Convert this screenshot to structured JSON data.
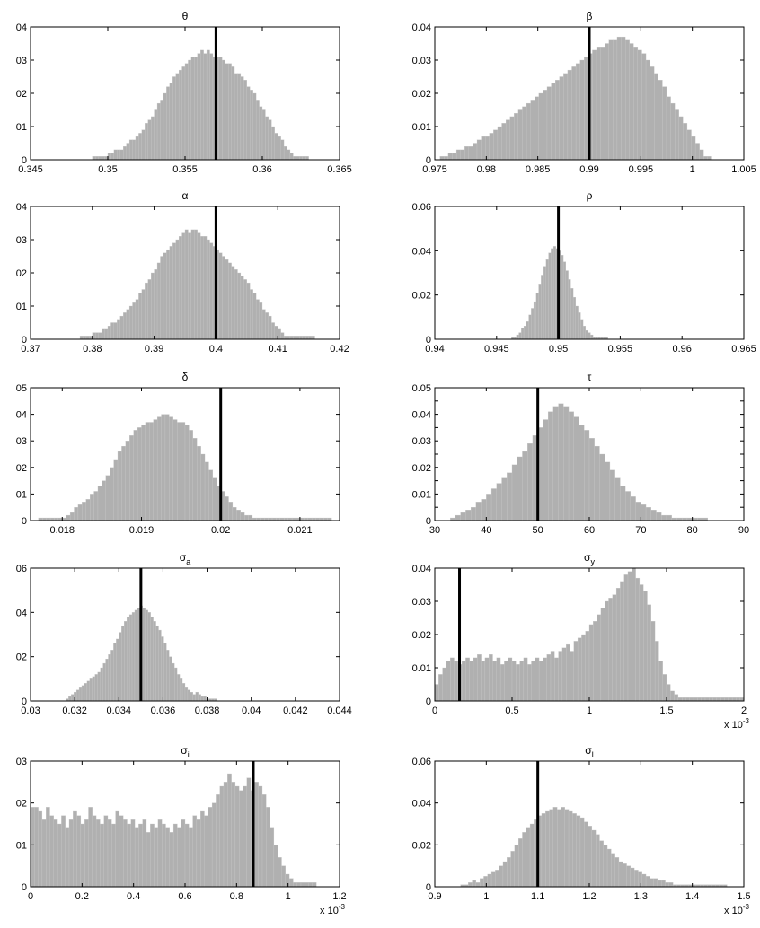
{
  "figure": {
    "colors": {
      "bar": "#b0b0b0",
      "marker": "#000000",
      "axis": "#000000"
    }
  },
  "chart_data": [
    {
      "type": "histogram",
      "title": "θ",
      "title_sub": "",
      "xlim": [
        0.345,
        0.365
      ],
      "ylim": [
        0,
        0.04
      ],
      "x_ticks": [
        0.345,
        0.35,
        0.355,
        0.36,
        0.365
      ],
      "x_tick_labels": [
        "0.345",
        "0.35",
        "0.355",
        "0.36",
        "0.365"
      ],
      "y_ticks": [
        0,
        0.01,
        0.02,
        0.03,
        0.04
      ],
      "y_tick_labels": [
        "0",
        "01",
        "02",
        "03",
        "04"
      ],
      "x_multiplier": "",
      "reference_line": 0.357,
      "bins": {
        "start": 0.349,
        "step": 0.0002,
        "values": [
          0.001,
          0.001,
          0.001,
          0.001,
          0.001,
          0.002,
          0.002,
          0.003,
          0.003,
          0.003,
          0.004,
          0.005,
          0.006,
          0.006,
          0.007,
          0.008,
          0.009,
          0.011,
          0.012,
          0.013,
          0.015,
          0.017,
          0.018,
          0.02,
          0.022,
          0.023,
          0.025,
          0.026,
          0.027,
          0.028,
          0.029,
          0.03,
          0.031,
          0.031,
          0.032,
          0.033,
          0.032,
          0.033,
          0.032,
          0.031,
          0.031,
          0.031,
          0.03,
          0.029,
          0.029,
          0.028,
          0.026,
          0.026,
          0.025,
          0.024,
          0.022,
          0.021,
          0.02,
          0.018,
          0.016,
          0.015,
          0.013,
          0.012,
          0.01,
          0.008,
          0.007,
          0.006,
          0.004,
          0.003,
          0.002,
          0.001,
          0.001,
          0.001,
          0.001,
          0.001
        ]
      }
    },
    {
      "type": "histogram",
      "title": "β",
      "title_sub": "",
      "xlim": [
        0.975,
        1.005
      ],
      "ylim": [
        0,
        0.04
      ],
      "x_ticks": [
        0.975,
        0.98,
        0.985,
        0.99,
        0.995,
        1,
        1.005
      ],
      "x_tick_labels": [
        "0.975",
        "0.98",
        "0.985",
        "0.99",
        "0.995",
        "1",
        "1.005"
      ],
      "y_ticks": [
        0,
        0.01,
        0.02,
        0.03,
        0.04
      ],
      "y_tick_labels": [
        "0",
        "0.01",
        "0.02",
        "0.03",
        "0.04"
      ],
      "x_multiplier": "",
      "reference_line": 0.99,
      "bins": {
        "start": 0.9755,
        "step": 0.0004,
        "values": [
          0.001,
          0.001,
          0.002,
          0.002,
          0.003,
          0.003,
          0.004,
          0.004,
          0.005,
          0.006,
          0.007,
          0.007,
          0.008,
          0.009,
          0.01,
          0.011,
          0.012,
          0.013,
          0.014,
          0.015,
          0.016,
          0.017,
          0.018,
          0.019,
          0.02,
          0.021,
          0.022,
          0.023,
          0.024,
          0.025,
          0.026,
          0.027,
          0.028,
          0.029,
          0.03,
          0.031,
          0.032,
          0.033,
          0.034,
          0.034,
          0.035,
          0.036,
          0.036,
          0.037,
          0.037,
          0.036,
          0.035,
          0.034,
          0.033,
          0.032,
          0.03,
          0.028,
          0.026,
          0.024,
          0.022,
          0.019,
          0.017,
          0.015,
          0.013,
          0.011,
          0.009,
          0.007,
          0.005,
          0.003,
          0.001,
          0.001
        ]
      }
    },
    {
      "type": "histogram",
      "title": "α",
      "title_sub": "",
      "xlim": [
        0.37,
        0.42
      ],
      "ylim": [
        0,
        0.04
      ],
      "x_ticks": [
        0.37,
        0.38,
        0.39,
        0.4,
        0.41,
        0.42
      ],
      "x_tick_labels": [
        "0.37",
        "0.38",
        "0.39",
        "0.4",
        "0.41",
        "0.42"
      ],
      "y_ticks": [
        0,
        0.01,
        0.02,
        0.03,
        0.04
      ],
      "y_tick_labels": [
        "0",
        "01",
        "02",
        "03",
        "04"
      ],
      "x_multiplier": "",
      "reference_line": 0.4,
      "bins": {
        "start": 0.378,
        "step": 0.0005,
        "values": [
          0.001,
          0.001,
          0.001,
          0.001,
          0.002,
          0.002,
          0.002,
          0.003,
          0.003,
          0.004,
          0.005,
          0.005,
          0.006,
          0.007,
          0.008,
          0.009,
          0.01,
          0.011,
          0.012,
          0.014,
          0.015,
          0.017,
          0.018,
          0.02,
          0.021,
          0.023,
          0.025,
          0.026,
          0.027,
          0.028,
          0.029,
          0.03,
          0.031,
          0.032,
          0.033,
          0.032,
          0.033,
          0.033,
          0.032,
          0.031,
          0.031,
          0.03,
          0.029,
          0.028,
          0.027,
          0.026,
          0.025,
          0.024,
          0.023,
          0.022,
          0.021,
          0.02,
          0.019,
          0.018,
          0.017,
          0.015,
          0.014,
          0.012,
          0.011,
          0.009,
          0.008,
          0.007,
          0.005,
          0.004,
          0.003,
          0.002,
          0.001,
          0.001,
          0.001,
          0.001,
          0.001,
          0.001,
          0.001,
          0.001,
          0.001,
          0.001
        ]
      }
    },
    {
      "type": "histogram",
      "title": "ρ",
      "title_sub": "",
      "xlim": [
        0.94,
        0.965
      ],
      "ylim": [
        0,
        0.06
      ],
      "x_ticks": [
        0.94,
        0.945,
        0.95,
        0.955,
        0.96,
        0.965
      ],
      "x_tick_labels": [
        "0.94",
        "0.945",
        "0.95",
        "0.955",
        "0.96",
        "0.965"
      ],
      "y_ticks": [
        0,
        0.02,
        0.04,
        0.06
      ],
      "y_tick_labels": [
        "0",
        "0.02",
        "0.04",
        "0.06"
      ],
      "x_multiplier": "",
      "reference_line": 0.95,
      "bins": {
        "start": 0.9462,
        "step": 0.0002,
        "values": [
          0.001,
          0.001,
          0.002,
          0.003,
          0.005,
          0.006,
          0.008,
          0.011,
          0.014,
          0.017,
          0.021,
          0.025,
          0.029,
          0.033,
          0.036,
          0.039,
          0.041,
          0.042,
          0.041,
          0.04,
          0.038,
          0.035,
          0.031,
          0.027,
          0.023,
          0.019,
          0.015,
          0.012,
          0.009,
          0.006,
          0.004,
          0.003,
          0.002,
          0.001,
          0.001,
          0.001,
          0.001,
          0.001,
          0.001
        ]
      }
    },
    {
      "type": "histogram",
      "title": "δ",
      "title_sub": "",
      "xlim": [
        0.0176,
        0.0215
      ],
      "ylim": [
        0,
        0.05
      ],
      "x_ticks": [
        0.018,
        0.019,
        0.02,
        0.021
      ],
      "x_tick_labels": [
        "0.018",
        "0.019",
        "0.02",
        "0.021"
      ],
      "y_ticks": [
        0,
        0.01,
        0.02,
        0.03,
        0.04,
        0.05
      ],
      "y_tick_labels": [
        "0",
        "01",
        "02",
        "03",
        "04",
        "05"
      ],
      "x_multiplier": "",
      "reference_line": 0.02,
      "bins": {
        "start": 0.0177,
        "step": 5e-05,
        "values": [
          0.001,
          0.001,
          0.001,
          0.001,
          0.001,
          0.001,
          0.001,
          0.002,
          0.003,
          0.005,
          0.006,
          0.007,
          0.008,
          0.01,
          0.011,
          0.013,
          0.015,
          0.017,
          0.02,
          0.023,
          0.026,
          0.028,
          0.03,
          0.032,
          0.034,
          0.035,
          0.036,
          0.037,
          0.037,
          0.038,
          0.039,
          0.04,
          0.04,
          0.039,
          0.038,
          0.037,
          0.037,
          0.036,
          0.034,
          0.031,
          0.028,
          0.025,
          0.022,
          0.019,
          0.016,
          0.013,
          0.011,
          0.009,
          0.007,
          0.005,
          0.004,
          0.003,
          0.002,
          0.002,
          0.001,
          0.001,
          0.001,
          0.001,
          0.001,
          0.001,
          0.001,
          0.001,
          0.001,
          0.001,
          0.001,
          0.001,
          0.001,
          0.001,
          0.001,
          0.001,
          0.001,
          0.001,
          0.001,
          0.001
        ]
      }
    },
    {
      "type": "histogram",
      "title": "τ",
      "title_sub": "",
      "xlim": [
        30,
        90
      ],
      "ylim": [
        0,
        0.05
      ],
      "x_ticks": [
        30,
        40,
        50,
        60,
        70,
        80,
        90
      ],
      "x_tick_labels": [
        "30",
        "40",
        "50",
        "60",
        "70",
        "80",
        "90"
      ],
      "y_ticks": [
        0,
        0.005,
        0.01,
        0.015,
        0.02,
        0.025,
        0.03,
        0.035,
        0.04,
        0.045,
        0.05
      ],
      "y_tick_labels": [
        "0",
        "0.005",
        "0.01",
        "0.015",
        "0.02",
        "0.025",
        "0.03",
        "0.035",
        "0.04",
        "0.045",
        "0.05"
      ],
      "x_multiplier": "",
      "reference_line": 50,
      "bins": {
        "start": 33,
        "step": 1,
        "values": [
          0.001,
          0.002,
          0.003,
          0.004,
          0.005,
          0.007,
          0.008,
          0.01,
          0.012,
          0.014,
          0.016,
          0.018,
          0.021,
          0.024,
          0.026,
          0.029,
          0.032,
          0.035,
          0.038,
          0.041,
          0.043,
          0.044,
          0.043,
          0.041,
          0.039,
          0.036,
          0.034,
          0.031,
          0.028,
          0.025,
          0.022,
          0.019,
          0.016,
          0.013,
          0.011,
          0.009,
          0.007,
          0.006,
          0.005,
          0.004,
          0.003,
          0.002,
          0.002,
          0.001,
          0.001,
          0.001,
          0.001,
          0.001,
          0.001,
          0.001
        ]
      }
    },
    {
      "type": "histogram",
      "title": "σ",
      "title_sub": "a",
      "xlim": [
        0.03,
        0.044
      ],
      "ylim": [
        0,
        0.06
      ],
      "x_ticks": [
        0.03,
        0.032,
        0.034,
        0.036,
        0.038,
        0.04,
        0.042,
        0.044
      ],
      "x_tick_labels": [
        "0.03",
        "0.032",
        "0.034",
        "0.036",
        "0.038",
        "0.04",
        "0.042",
        "0.044"
      ],
      "y_ticks": [
        0,
        0.02,
        0.04,
        0.06
      ],
      "y_tick_labels": [
        "0",
        "02",
        "04",
        "06"
      ],
      "x_multiplier": "",
      "reference_line": 0.035,
      "bins": {
        "start": 0.0316,
        "step": 0.00012,
        "values": [
          0.001,
          0.002,
          0.003,
          0.004,
          0.005,
          0.006,
          0.007,
          0.008,
          0.009,
          0.01,
          0.011,
          0.012,
          0.013,
          0.015,
          0.017,
          0.019,
          0.021,
          0.023,
          0.026,
          0.028,
          0.031,
          0.034,
          0.036,
          0.038,
          0.039,
          0.04,
          0.041,
          0.042,
          0.043,
          0.042,
          0.041,
          0.04,
          0.038,
          0.036,
          0.034,
          0.032,
          0.029,
          0.026,
          0.023,
          0.02,
          0.017,
          0.015,
          0.012,
          0.01,
          0.008,
          0.006,
          0.005,
          0.004,
          0.003,
          0.004,
          0.003,
          0.002,
          0.002,
          0.001,
          0.001,
          0.001,
          0.001
        ]
      }
    },
    {
      "type": "histogram",
      "title": "σ",
      "title_sub": "y",
      "xlim": [
        0,
        2
      ],
      "ylim": [
        0,
        0.04
      ],
      "x_ticks": [
        0,
        0.5,
        1,
        1.5,
        2
      ],
      "x_tick_labels": [
        "0",
        "0.5",
        "1",
        "1.5",
        "2"
      ],
      "y_ticks": [
        0,
        0.01,
        0.02,
        0.03,
        0.04
      ],
      "y_tick_labels": [
        "0",
        "0.01",
        "0.02",
        "0.03",
        "0.04"
      ],
      "x_multiplier": "x 10",
      "x_multiplier_exp": "-3",
      "reference_line": 0.16,
      "bins": {
        "start": 0,
        "step": 0.025,
        "values": [
          0.005,
          0.008,
          0.01,
          0.012,
          0.013,
          0.012,
          0.011,
          0.012,
          0.013,
          0.012,
          0.013,
          0.014,
          0.012,
          0.013,
          0.014,
          0.012,
          0.013,
          0.011,
          0.012,
          0.013,
          0.012,
          0.011,
          0.012,
          0.013,
          0.011,
          0.012,
          0.013,
          0.012,
          0.013,
          0.014,
          0.015,
          0.013,
          0.015,
          0.016,
          0.017,
          0.015,
          0.018,
          0.019,
          0.02,
          0.021,
          0.023,
          0.024,
          0.026,
          0.028,
          0.03,
          0.031,
          0.032,
          0.034,
          0.036,
          0.038,
          0.039,
          0.04,
          0.037,
          0.035,
          0.033,
          0.029,
          0.024,
          0.018,
          0.012,
          0.008,
          0.005,
          0.003,
          0.002,
          0.001,
          0.001,
          0.001,
          0.001,
          0.001,
          0.001,
          0.001,
          0.001,
          0.001,
          0.001,
          0.001,
          0.001,
          0.001,
          0.001,
          0.001,
          0.001,
          0.001
        ]
      }
    },
    {
      "type": "histogram",
      "title": "σ",
      "title_sub": "i",
      "xlim": [
        0,
        1.2
      ],
      "ylim": [
        0,
        0.03
      ],
      "x_ticks": [
        0,
        0.2,
        0.4,
        0.6,
        0.8,
        1,
        1.2
      ],
      "x_tick_labels": [
        "0",
        "0.2",
        "0.4",
        "0.6",
        "0.8",
        "1",
        "1.2"
      ],
      "y_ticks": [
        0,
        0.01,
        0.02,
        0.03
      ],
      "y_tick_labels": [
        "0",
        "01",
        "02",
        "03"
      ],
      "x_multiplier": "x 10",
      "x_multiplier_exp": "-3",
      "reference_line": 0.865,
      "bins": {
        "start": 0,
        "step": 0.015,
        "values": [
          0.019,
          0.019,
          0.018,
          0.016,
          0.019,
          0.017,
          0.016,
          0.015,
          0.017,
          0.014,
          0.016,
          0.018,
          0.017,
          0.015,
          0.016,
          0.019,
          0.017,
          0.016,
          0.015,
          0.017,
          0.016,
          0.015,
          0.018,
          0.017,
          0.016,
          0.015,
          0.016,
          0.014,
          0.015,
          0.016,
          0.013,
          0.015,
          0.014,
          0.016,
          0.015,
          0.014,
          0.013,
          0.015,
          0.014,
          0.016,
          0.015,
          0.014,
          0.017,
          0.016,
          0.018,
          0.017,
          0.019,
          0.02,
          0.022,
          0.024,
          0.025,
          0.027,
          0.025,
          0.024,
          0.023,
          0.024,
          0.026,
          0.023,
          0.025,
          0.024,
          0.022,
          0.019,
          0.014,
          0.01,
          0.007,
          0.005,
          0.003,
          0.002,
          0.001,
          0.001,
          0.001,
          0.001,
          0.001,
          0.001
        ]
      }
    },
    {
      "type": "histogram",
      "title": "σ",
      "title_sub": "l",
      "xlim": [
        0.9,
        1.5
      ],
      "ylim": [
        0,
        0.06
      ],
      "x_ticks": [
        0.9,
        1,
        1.1,
        1.2,
        1.3,
        1.4,
        1.5
      ],
      "x_tick_labels": [
        "0.9",
        "1",
        "1.1",
        "1.2",
        "1.3",
        "1.4",
        "1.5"
      ],
      "y_ticks": [
        0,
        0.02,
        0.04,
        0.06
      ],
      "y_tick_labels": [
        "0",
        "0.02",
        "0.04",
        "0.06"
      ],
      "x_multiplier": "x 10",
      "x_multiplier_exp": "-3",
      "reference_line": 1.1,
      "bins": {
        "start": 0.95,
        "step": 0.0075,
        "values": [
          0.001,
          0.001,
          0.002,
          0.003,
          0.002,
          0.004,
          0.005,
          0.006,
          0.007,
          0.008,
          0.01,
          0.012,
          0.014,
          0.017,
          0.02,
          0.023,
          0.026,
          0.028,
          0.03,
          0.032,
          0.034,
          0.035,
          0.036,
          0.037,
          0.038,
          0.037,
          0.038,
          0.037,
          0.036,
          0.035,
          0.034,
          0.033,
          0.031,
          0.029,
          0.027,
          0.025,
          0.022,
          0.02,
          0.018,
          0.016,
          0.014,
          0.012,
          0.011,
          0.01,
          0.009,
          0.008,
          0.007,
          0.006,
          0.005,
          0.004,
          0.004,
          0.003,
          0.003,
          0.002,
          0.002,
          0.001,
          0.001,
          0.001,
          0.001,
          0.001,
          0.001,
          0.001,
          0.001,
          0.001,
          0.001,
          0.001,
          0.001,
          0.001,
          0.001
        ]
      }
    }
  ]
}
